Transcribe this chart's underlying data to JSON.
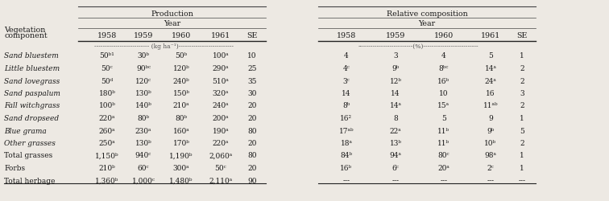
{
  "bg_color": "#ede9e3",
  "header_color": "#1a1a1a",
  "fs_header": 6.8,
  "fs_data": 6.5,
  "fs_unit": 5.5,
  "row_headers": [
    "Sand bluestem",
    "Little bluestem",
    "Sand lovegrass",
    "Sand paspalum",
    "Fall witchgrass",
    "Sand dropseed",
    "Blue grama",
    "Other grasses",
    "Total grasses",
    "Forbs",
    "Total herbage"
  ],
  "row_italic": [
    true,
    true,
    true,
    true,
    true,
    true,
    true,
    true,
    false,
    false,
    false
  ],
  "row_bold": [
    false,
    false,
    false,
    false,
    false,
    false,
    false,
    false,
    false,
    false,
    false
  ],
  "prod_data": [
    [
      "50ᵇ¹",
      "30ᵇ",
      "50ᵇ",
      "100ᵃ",
      "10"
    ],
    [
      "50ᶜ",
      "90ᵇᶜ",
      "120ᵇ",
      "290ᵃ",
      "25"
    ],
    [
      "50ᵈ",
      "120ᶜ",
      "240ᵇ",
      "510ᵃ",
      "35"
    ],
    [
      "180ᵇ",
      "130ᵇ",
      "150ᵇ",
      "320ᵃ",
      "30"
    ],
    [
      "100ᵇ",
      "140ᵇ",
      "210ᵃ",
      "240ᵃ",
      "20"
    ],
    [
      "220ᵃ",
      "80ᵇ",
      "80ᵇ",
      "200ᵃ",
      "20"
    ],
    [
      "260ᵃ",
      "230ᵃ",
      "160ᵃ",
      "190ᵃ",
      "80"
    ],
    [
      "250ᵃ",
      "130ᵇ",
      "170ᵇ",
      "220ᵃ",
      "20"
    ],
    [
      "1,150ᵇ",
      "940ᶜ",
      "1,190ᵇ",
      "2,060ᵃ",
      "80"
    ],
    [
      "210ᵇ",
      "60ᶜ",
      "300ᵃ",
      "50ᶜ",
      "20"
    ],
    [
      "1,360ᵇ",
      "1,000ᶜ",
      "1,480ᵇ",
      "2,110ᵃ",
      "90"
    ]
  ],
  "rel_data": [
    [
      "4",
      "3",
      "4",
      "5",
      "1"
    ],
    [
      "4ᶜ",
      "9ᵇ",
      "8ᵇᶜ",
      "14ᵃ",
      "2"
    ],
    [
      "3ᶜ",
      "12ᵇ",
      "16ᵇ",
      "24ᵃ",
      "2"
    ],
    [
      "14",
      "14",
      "10",
      "16",
      "3"
    ],
    [
      "8ᵇ",
      "14ᵃ",
      "15ᵃ",
      "11ᵃᵇ",
      "2"
    ],
    [
      "16²",
      "8",
      "5",
      "9",
      "1"
    ],
    [
      "17ᵃᵇ",
      "22ᵃ",
      "11ᵇ",
      "9ᵇ",
      "5"
    ],
    [
      "18ᵃ",
      "13ᵇ",
      "11ᵇ",
      "10ᵇ",
      "2"
    ],
    [
      "84ᵇ",
      "94ᵃ",
      "80ᶜ",
      "98ᵃ",
      "1"
    ],
    [
      "16ᵇ",
      "6ᶜ",
      "20ᵃ",
      "2ᶜ",
      "1"
    ],
    [
      "---",
      "---",
      "---",
      "---",
      "---"
    ]
  ],
  "years": [
    "1958",
    "1959",
    "1960",
    "1961",
    "SE"
  ],
  "unit_prod": "-------------------------- (kg ha⁻¹)--------------------------",
  "unit_rel": "--------------------------(%)--------------------------"
}
